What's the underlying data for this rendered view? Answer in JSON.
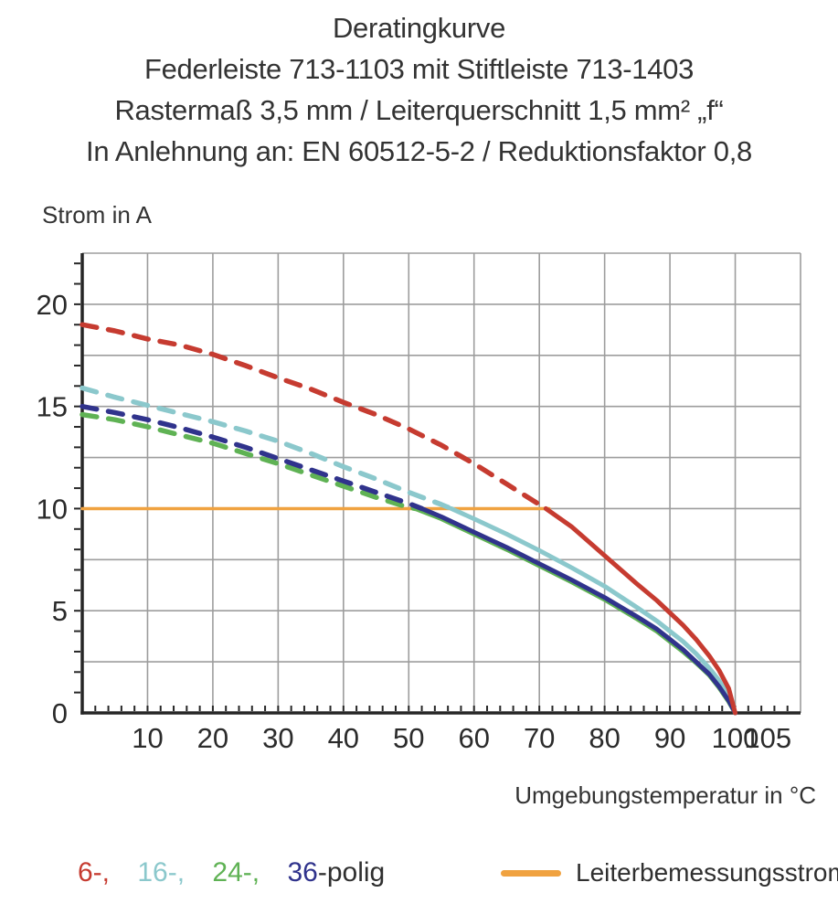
{
  "chart_data": {
    "type": "line",
    "title_lines": [
      "Deratingkurve",
      "Federleiste 713-1103 mit Stiftleiste 713-1403",
      "Rastermaß 3,5 mm / Leiterquerschnitt 1,5 mm² „f“",
      "In Anlehnung an: EN 60512-5-2 / Reduktionsfaktor 0,8"
    ],
    "ylabel": "Strom in A",
    "xlabel": "Umgebungstemperatur in °C",
    "xlim": [
      0,
      110
    ],
    "ylim": [
      0,
      22.5
    ],
    "x_major_ticks": [
      10,
      20,
      30,
      40,
      50,
      60,
      70,
      80,
      90,
      100,
      105
    ],
    "y_major_ticks": [
      0,
      5,
      10,
      15,
      20
    ],
    "x_minor_tick_step": 2,
    "y_minor_tick_step": 1,
    "x_grid_step": 10,
    "y_grid_step": 2.5,
    "grid": true,
    "legend_position": "bottom",
    "colors": {
      "grid": "#9d9d9d",
      "axis": "#262626",
      "tick_text": "#2b2b2b"
    },
    "reference_line": {
      "name": "Leiterbemessungsstrom",
      "y": 10,
      "x_start": 0,
      "x_end": 71.5,
      "color": "#f0a240"
    },
    "series": [
      {
        "name": "6-polig",
        "color": "#c63b30",
        "z": 4,
        "dashed": [
          [
            0,
            19
          ],
          [
            5,
            18.7
          ],
          [
            10,
            18.3
          ],
          [
            15,
            18.0
          ],
          [
            20,
            17.55
          ],
          [
            25,
            17.0
          ],
          [
            30,
            16.4
          ],
          [
            35,
            15.85
          ],
          [
            40,
            15.2
          ],
          [
            45,
            14.6
          ],
          [
            50,
            13.9
          ],
          [
            55,
            13.1
          ],
          [
            60,
            12.2
          ],
          [
            65,
            11.2
          ],
          [
            70,
            10.2
          ],
          [
            71,
            10.0
          ]
        ],
        "solid": [
          [
            71,
            10.0
          ],
          [
            75,
            9.1
          ],
          [
            80,
            7.7
          ],
          [
            85,
            6.3
          ],
          [
            88,
            5.5
          ],
          [
            90,
            4.9
          ],
          [
            92,
            4.3
          ],
          [
            94,
            3.6
          ],
          [
            96,
            2.8
          ],
          [
            97.5,
            2.1
          ],
          [
            99,
            1.2
          ],
          [
            100,
            0
          ]
        ]
      },
      {
        "name": "16-polig",
        "color": "#8bc8cc",
        "z": 1,
        "dashed": [
          [
            0,
            15.9
          ],
          [
            5,
            15.45
          ],
          [
            10,
            15.05
          ],
          [
            15,
            14.65
          ],
          [
            20,
            14.25
          ],
          [
            25,
            13.8
          ],
          [
            30,
            13.3
          ],
          [
            35,
            12.7
          ],
          [
            40,
            12.05
          ],
          [
            45,
            11.45
          ],
          [
            50,
            10.8
          ],
          [
            55,
            10.2
          ],
          [
            56.5,
            10.0
          ]
        ],
        "solid": [
          [
            56.5,
            10.0
          ],
          [
            60,
            9.5
          ],
          [
            65,
            8.75
          ],
          [
            70,
            7.95
          ],
          [
            75,
            7.1
          ],
          [
            80,
            6.2
          ],
          [
            85,
            5.15
          ],
          [
            88,
            4.5
          ],
          [
            90,
            4.0
          ],
          [
            92,
            3.5
          ],
          [
            94,
            2.9
          ],
          [
            96,
            2.2
          ],
          [
            97.5,
            1.6
          ],
          [
            99,
            0.8
          ],
          [
            100,
            0
          ]
        ]
      },
      {
        "name": "24-polig",
        "color": "#5fb254",
        "z": 2,
        "dashed": [
          [
            0,
            14.6
          ],
          [
            5,
            14.35
          ],
          [
            10,
            14.0
          ],
          [
            15,
            13.6
          ],
          [
            20,
            13.2
          ],
          [
            25,
            12.7
          ],
          [
            30,
            12.2
          ],
          [
            35,
            11.65
          ],
          [
            40,
            11.1
          ],
          [
            45,
            10.55
          ],
          [
            50,
            10.05
          ],
          [
            51,
            10.0
          ]
        ],
        "solid": [
          [
            51,
            10.0
          ],
          [
            55,
            9.5
          ],
          [
            60,
            8.75
          ],
          [
            65,
            8.0
          ],
          [
            70,
            7.2
          ],
          [
            75,
            6.4
          ],
          [
            80,
            5.55
          ],
          [
            85,
            4.6
          ],
          [
            88,
            4.0
          ],
          [
            90,
            3.5
          ],
          [
            92,
            3.0
          ],
          [
            94,
            2.45
          ],
          [
            96,
            1.85
          ],
          [
            97.5,
            1.25
          ],
          [
            99,
            0.55
          ],
          [
            100,
            0
          ]
        ]
      },
      {
        "name": "36-polig",
        "color": "#30338c",
        "z": 3,
        "dashed": [
          [
            0,
            15.0
          ],
          [
            5,
            14.7
          ],
          [
            10,
            14.35
          ],
          [
            15,
            13.95
          ],
          [
            20,
            13.5
          ],
          [
            25,
            13.0
          ],
          [
            30,
            12.45
          ],
          [
            35,
            11.9
          ],
          [
            40,
            11.35
          ],
          [
            45,
            10.8
          ],
          [
            50,
            10.25
          ],
          [
            52,
            10.0
          ]
        ],
        "solid": [
          [
            52,
            10.0
          ],
          [
            55,
            9.6
          ],
          [
            60,
            8.85
          ],
          [
            65,
            8.1
          ],
          [
            70,
            7.3
          ],
          [
            75,
            6.5
          ],
          [
            80,
            5.65
          ],
          [
            85,
            4.7
          ],
          [
            88,
            4.1
          ],
          [
            90,
            3.6
          ],
          [
            92,
            3.1
          ],
          [
            94,
            2.5
          ],
          [
            96,
            1.9
          ],
          [
            97.5,
            1.3
          ],
          [
            99,
            0.6
          ],
          [
            100,
            0
          ]
        ]
      }
    ]
  },
  "legend": {
    "pole_items": [
      {
        "label": "6-,",
        "color": "#c63b30"
      },
      {
        "label": "16-,",
        "color": "#8bc8cc"
      },
      {
        "label": "24-,",
        "color": "#5fb254"
      },
      {
        "label": "36",
        "color": "#30338c"
      }
    ],
    "pole_suffix": "-polig",
    "rated_current": {
      "label": "Leiterbemessungsstrom",
      "color": "#f0a240"
    }
  }
}
